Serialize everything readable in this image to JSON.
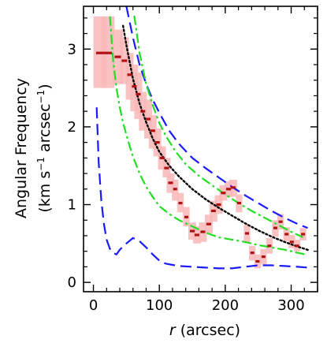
{
  "chart_data": {
    "type": "scatter",
    "xlabel_var": "r",
    "xlabel_unit": "(arcsec)",
    "ylabel_line1": "Angular Frequency",
    "ylabel_line2_prefix": "(km s",
    "ylabel_line2_sup1": "−1",
    "ylabel_line2_mid": " arcsec",
    "ylabel_line2_sup2": "−1",
    "ylabel_line2_suffix": ")",
    "xlim": [
      -15,
      340
    ],
    "ylim": [
      -0.12,
      3.55
    ],
    "x_ticks": [
      0,
      100,
      200,
      300
    ],
    "y_ticks": [
      0,
      1,
      2,
      3
    ],
    "x_minor_step": 20,
    "y_minor_step": 0.2,
    "points": [
      {
        "x": 10,
        "y": 2.95,
        "xerr": 10,
        "ylo": 2.5,
        "yhi": 3.42
      },
      {
        "x": 22,
        "y": 2.95,
        "xerr": 10,
        "ylo": 2.5,
        "yhi": 3.42
      },
      {
        "x": 37,
        "y": 2.9,
        "xerr": 8,
        "ylo": 2.55,
        "yhi": 3.25
      },
      {
        "x": 47,
        "y": 2.85,
        "xerr": 7,
        "ylo": 2.55,
        "yhi": 3.15
      },
      {
        "x": 55,
        "y": 2.67,
        "xerr": 6,
        "ylo": 2.35,
        "yhi": 2.95
      },
      {
        "x": 62,
        "y": 2.52,
        "xerr": 6,
        "ylo": 2.2,
        "yhi": 2.8
      },
      {
        "x": 68,
        "y": 2.42,
        "xerr": 6,
        "ylo": 2.1,
        "yhi": 2.7
      },
      {
        "x": 75,
        "y": 2.2,
        "xerr": 6,
        "ylo": 1.95,
        "yhi": 2.45
      },
      {
        "x": 83,
        "y": 2.1,
        "xerr": 6,
        "ylo": 1.85,
        "yhi": 2.35
      },
      {
        "x": 90,
        "y": 1.95,
        "xerr": 6,
        "ylo": 1.72,
        "yhi": 2.15
      },
      {
        "x": 97,
        "y": 1.8,
        "xerr": 6,
        "ylo": 1.62,
        "yhi": 1.98
      },
      {
        "x": 104,
        "y": 1.6,
        "xerr": 6,
        "ylo": 1.45,
        "yhi": 1.75
      },
      {
        "x": 111,
        "y": 1.47,
        "xerr": 6,
        "ylo": 1.35,
        "yhi": 1.6
      },
      {
        "x": 117,
        "y": 1.28,
        "xerr": 6,
        "ylo": 1.15,
        "yhi": 1.4
      },
      {
        "x": 124,
        "y": 1.2,
        "xerr": 5,
        "ylo": 1.05,
        "yhi": 1.32
      },
      {
        "x": 132,
        "y": 1.02,
        "xerr": 5,
        "ylo": 0.9,
        "yhi": 1.15
      },
      {
        "x": 141,
        "y": 0.84,
        "xerr": 5,
        "ylo": 0.72,
        "yhi": 0.97
      },
      {
        "x": 150,
        "y": 0.66,
        "xerr": 6,
        "ylo": 0.55,
        "yhi": 0.77
      },
      {
        "x": 157,
        "y": 0.61,
        "xerr": 6,
        "ylo": 0.5,
        "yhi": 0.72
      },
      {
        "x": 166,
        "y": 0.65,
        "xerr": 6,
        "ylo": 0.52,
        "yhi": 0.77
      },
      {
        "x": 175,
        "y": 0.75,
        "xerr": 6,
        "ylo": 0.63,
        "yhi": 0.87
      },
      {
        "x": 182,
        "y": 0.92,
        "xerr": 6,
        "ylo": 0.78,
        "yhi": 1.05
      },
      {
        "x": 190,
        "y": 1.0,
        "xerr": 6,
        "ylo": 0.88,
        "yhi": 1.12
      },
      {
        "x": 197,
        "y": 1.15,
        "xerr": 6,
        "ylo": 1.05,
        "yhi": 1.25
      },
      {
        "x": 205,
        "y": 1.2,
        "xerr": 6,
        "ylo": 1.1,
        "yhi": 1.3
      },
      {
        "x": 212,
        "y": 1.22,
        "xerr": 6,
        "ylo": 1.1,
        "yhi": 1.32
      },
      {
        "x": 221,
        "y": 1.02,
        "xerr": 5,
        "ylo": 0.9,
        "yhi": 1.13
      },
      {
        "x": 233,
        "y": 0.63,
        "xerr": 5,
        "ylo": 0.52,
        "yhi": 0.74
      },
      {
        "x": 241,
        "y": 0.38,
        "xerr": 5,
        "ylo": 0.28,
        "yhi": 0.47
      },
      {
        "x": 249,
        "y": 0.27,
        "xerr": 5,
        "ylo": 0.18,
        "yhi": 0.36
      },
      {
        "x": 258,
        "y": 0.33,
        "xerr": 5,
        "ylo": 0.23,
        "yhi": 0.43
      },
      {
        "x": 267,
        "y": 0.47,
        "xerr": 5,
        "ylo": 0.37,
        "yhi": 0.57
      },
      {
        "x": 276,
        "y": 0.7,
        "xerr": 5,
        "ylo": 0.59,
        "yhi": 0.8
      },
      {
        "x": 284,
        "y": 0.78,
        "xerr": 5,
        "ylo": 0.68,
        "yhi": 0.88
      },
      {
        "x": 293,
        "y": 0.62,
        "xerr": 5,
        "ylo": 0.53,
        "yhi": 0.71
      },
      {
        "x": 301,
        "y": 0.52,
        "xerr": 5,
        "ylo": 0.44,
        "yhi": 0.61
      },
      {
        "x": 309,
        "y": 0.47,
        "xerr": 5,
        "ylo": 0.4,
        "yhi": 0.55
      },
      {
        "x": 318,
        "y": 0.62,
        "xerr": 5,
        "ylo": 0.54,
        "yhi": 0.7
      }
    ],
    "curves": [
      {
        "style": "dashed",
        "color": "#1a1aff",
        "x": [
          50,
          60,
          70,
          80,
          90,
          100,
          115,
          130,
          150,
          170,
          190,
          210,
          230,
          250,
          270,
          290,
          310,
          325
        ],
        "y": [
          3.55,
          3.15,
          2.8,
          2.55,
          2.35,
          2.18,
          1.95,
          1.78,
          1.6,
          1.47,
          1.35,
          1.23,
          1.12,
          1.02,
          0.92,
          0.83,
          0.75,
          0.7
        ]
      },
      {
        "style": "dashdot",
        "color": "#22dd22",
        "x": [
          62,
          70,
          80,
          90,
          100,
          110,
          125,
          140,
          160,
          180,
          200,
          220,
          240,
          260,
          280,
          300,
          318
        ],
        "y": [
          3.43,
          2.95,
          2.55,
          2.28,
          2.05,
          1.88,
          1.68,
          1.52,
          1.37,
          1.25,
          1.13,
          1.02,
          0.92,
          0.83,
          0.74,
          0.65,
          0.58
        ]
      },
      {
        "style": "dotted",
        "color": "#000000",
        "x": [
          45,
          50,
          60,
          70,
          80,
          90,
          100,
          115,
          130,
          150,
          170,
          190,
          210,
          230,
          250,
          270,
          290,
          310,
          328
        ],
        "y": [
          3.3,
          3.05,
          2.62,
          2.3,
          2.06,
          1.85,
          1.68,
          1.5,
          1.36,
          1.2,
          1.07,
          0.96,
          0.86,
          0.76,
          0.67,
          0.59,
          0.52,
          0.46,
          0.41
        ]
      },
      {
        "style": "dashdot",
        "color": "#22dd22",
        "x": [
          25,
          30,
          35,
          40,
          45,
          50,
          55,
          60,
          70,
          80,
          90,
          100,
          115,
          130,
          150,
          170,
          190,
          210,
          230,
          250,
          270,
          290,
          310,
          322
        ],
        "y": [
          3.42,
          2.85,
          2.5,
          2.25,
          2.05,
          1.9,
          1.75,
          1.62,
          1.4,
          1.23,
          1.1,
          0.98,
          0.88,
          0.8,
          0.72,
          0.64,
          0.58,
          0.55,
          0.52,
          0.48,
          0.45,
          0.42,
          0.38,
          0.36
        ]
      },
      {
        "style": "dashed",
        "color": "#1a1aff",
        "x": [
          5,
          8,
          12,
          16,
          20,
          25,
          30,
          35,
          40,
          50,
          60,
          70,
          80,
          90,
          100,
          110,
          130,
          150,
          170,
          190,
          210,
          230,
          250,
          270,
          290,
          310,
          325
        ],
        "y": [
          2.25,
          1.55,
          1.05,
          0.75,
          0.55,
          0.43,
          0.38,
          0.36,
          0.42,
          0.5,
          0.57,
          0.53,
          0.45,
          0.36,
          0.28,
          0.24,
          0.21,
          0.2,
          0.19,
          0.18,
          0.18,
          0.2,
          0.22,
          0.22,
          0.21,
          0.2,
          0.19
        ]
      }
    ]
  }
}
